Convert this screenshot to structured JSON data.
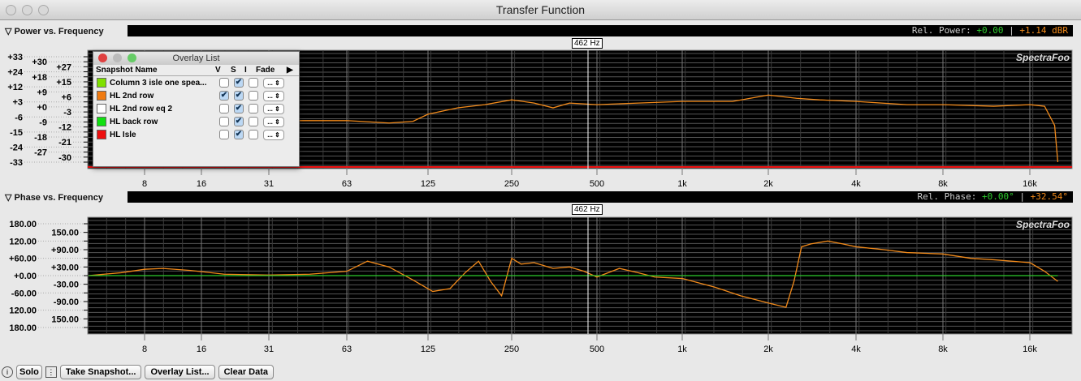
{
  "window": {
    "title": "Transfer Function"
  },
  "power": {
    "header": "Power vs. Frequency",
    "readout_label": "Rel. Power: ",
    "readout_ref": "+0.00",
    "readout_val": "+1.14 dBR",
    "cursor": "462 Hz",
    "brand": "SpectraFoo"
  },
  "phase": {
    "header": "Phase vs. Frequency",
    "readout_label": "Rel. Phase: ",
    "readout_ref": "+0.00°",
    "readout_val": "+32.54°",
    "cursor": "462 Hz",
    "brand": "SpectraFoo"
  },
  "overlay": {
    "title": "Overlay List",
    "headers": [
      "Snapshot Name",
      "V",
      "S",
      "I",
      "Fade"
    ],
    "fade_label": "...",
    "rows": [
      {
        "name": "Column 3 isle one spea...",
        "color": "#7fe000",
        "v": false,
        "s": true,
        "i": false
      },
      {
        "name": "HL 2nd row",
        "color": "#f07a10",
        "v": true,
        "s": true,
        "i": false
      },
      {
        "name": "HL 2nd row eq 2",
        "color": "#ffffff",
        "v": false,
        "s": true,
        "i": false
      },
      {
        "name": "HL back row",
        "color": "#10e010",
        "v": false,
        "s": true,
        "i": false
      },
      {
        "name": "HL Isle",
        "color": "#ee1010",
        "v": false,
        "s": true,
        "i": false
      }
    ]
  },
  "buttons": {
    "solo": "Solo",
    "snapshot": "Take Snapshot...",
    "overlay": "Overlay List...",
    "clear": "Clear Data"
  },
  "colors": {
    "trace": "#f28a1a",
    "reference": "#2ecc2e",
    "isle": "#ee1010"
  },
  "chart_data": [
    {
      "type": "line",
      "title": "Power vs. Frequency",
      "x_ticks": [
        "8",
        "16",
        "31",
        "63",
        "125",
        "250",
        "500",
        "1k",
        "2k",
        "4k",
        "8k",
        "16k"
      ],
      "y_ticks": [
        "+33",
        "+30",
        "+27",
        "+24",
        "+18",
        "+15",
        "+12",
        "+9",
        "+6",
        "+3",
        "+0",
        "-3",
        "-6",
        "-9",
        "-12",
        "-15",
        "-18",
        "-21",
        "-24",
        "-27",
        "-30",
        "-33"
      ],
      "ylim": [
        -33,
        33
      ],
      "x_scale": "log",
      "series": [
        {
          "name": "HL 2nd row",
          "x": [
            25,
            31,
            45,
            63,
            90,
            110,
            125,
            160,
            200,
            250,
            300,
            350,
            400,
            500,
            700,
            1000,
            1500,
            2000,
            2500,
            3000,
            4000,
            6000,
            8000,
            12000,
            16000,
            18000,
            19500,
            20000
          ],
          "y": [
            -6,
            -7,
            -7,
            -7,
            -8.5,
            -7.5,
            -3,
            1,
            3,
            6,
            4,
            1,
            4,
            3,
            4,
            5,
            5,
            9,
            7,
            6,
            5,
            3,
            3,
            2,
            3,
            2,
            -10,
            -33
          ]
        }
      ]
    },
    {
      "type": "line",
      "title": "Phase vs. Frequency",
      "x_ticks": [
        "8",
        "16",
        "31",
        "63",
        "125",
        "250",
        "500",
        "1k",
        "2k",
        "4k",
        "8k",
        "16k"
      ],
      "y_ticks": [
        "180.00",
        "150.00",
        "120.00",
        "+90.00",
        "+60.00",
        "+30.00",
        "+0.00",
        "-30.00",
        "-60.00",
        "-90.00",
        "120.00",
        "150.00",
        "180.00"
      ],
      "ylim": [
        -180,
        180
      ],
      "x_scale": "log",
      "series": [
        {
          "name": "HL 2nd row",
          "x": [
            4,
            6,
            8,
            10,
            14,
            20,
            31,
            45,
            63,
            75,
            90,
            110,
            130,
            150,
            170,
            190,
            210,
            230,
            250,
            270,
            300,
            350,
            400,
            450,
            500,
            600,
            700,
            800,
            1000,
            1300,
            1600,
            2000,
            2300,
            2450,
            2600,
            2800,
            3200,
            3600,
            4000,
            5000,
            6000,
            8000,
            10000,
            12000,
            16000,
            18000,
            20000
          ],
          "y": [
            0,
            10,
            22,
            25,
            18,
            5,
            2,
            5,
            15,
            50,
            30,
            -15,
            -55,
            -45,
            10,
            50,
            -20,
            -70,
            60,
            40,
            45,
            25,
            30,
            15,
            -5,
            25,
            10,
            -5,
            -10,
            -40,
            -70,
            -95,
            -110,
            -20,
            100,
            110,
            120,
            110,
            100,
            90,
            80,
            75,
            60,
            55,
            45,
            15,
            -20
          ]
        },
        {
          "name": "reference",
          "x": [
            4,
            20000
          ],
          "y": [
            0,
            0
          ]
        }
      ]
    }
  ]
}
